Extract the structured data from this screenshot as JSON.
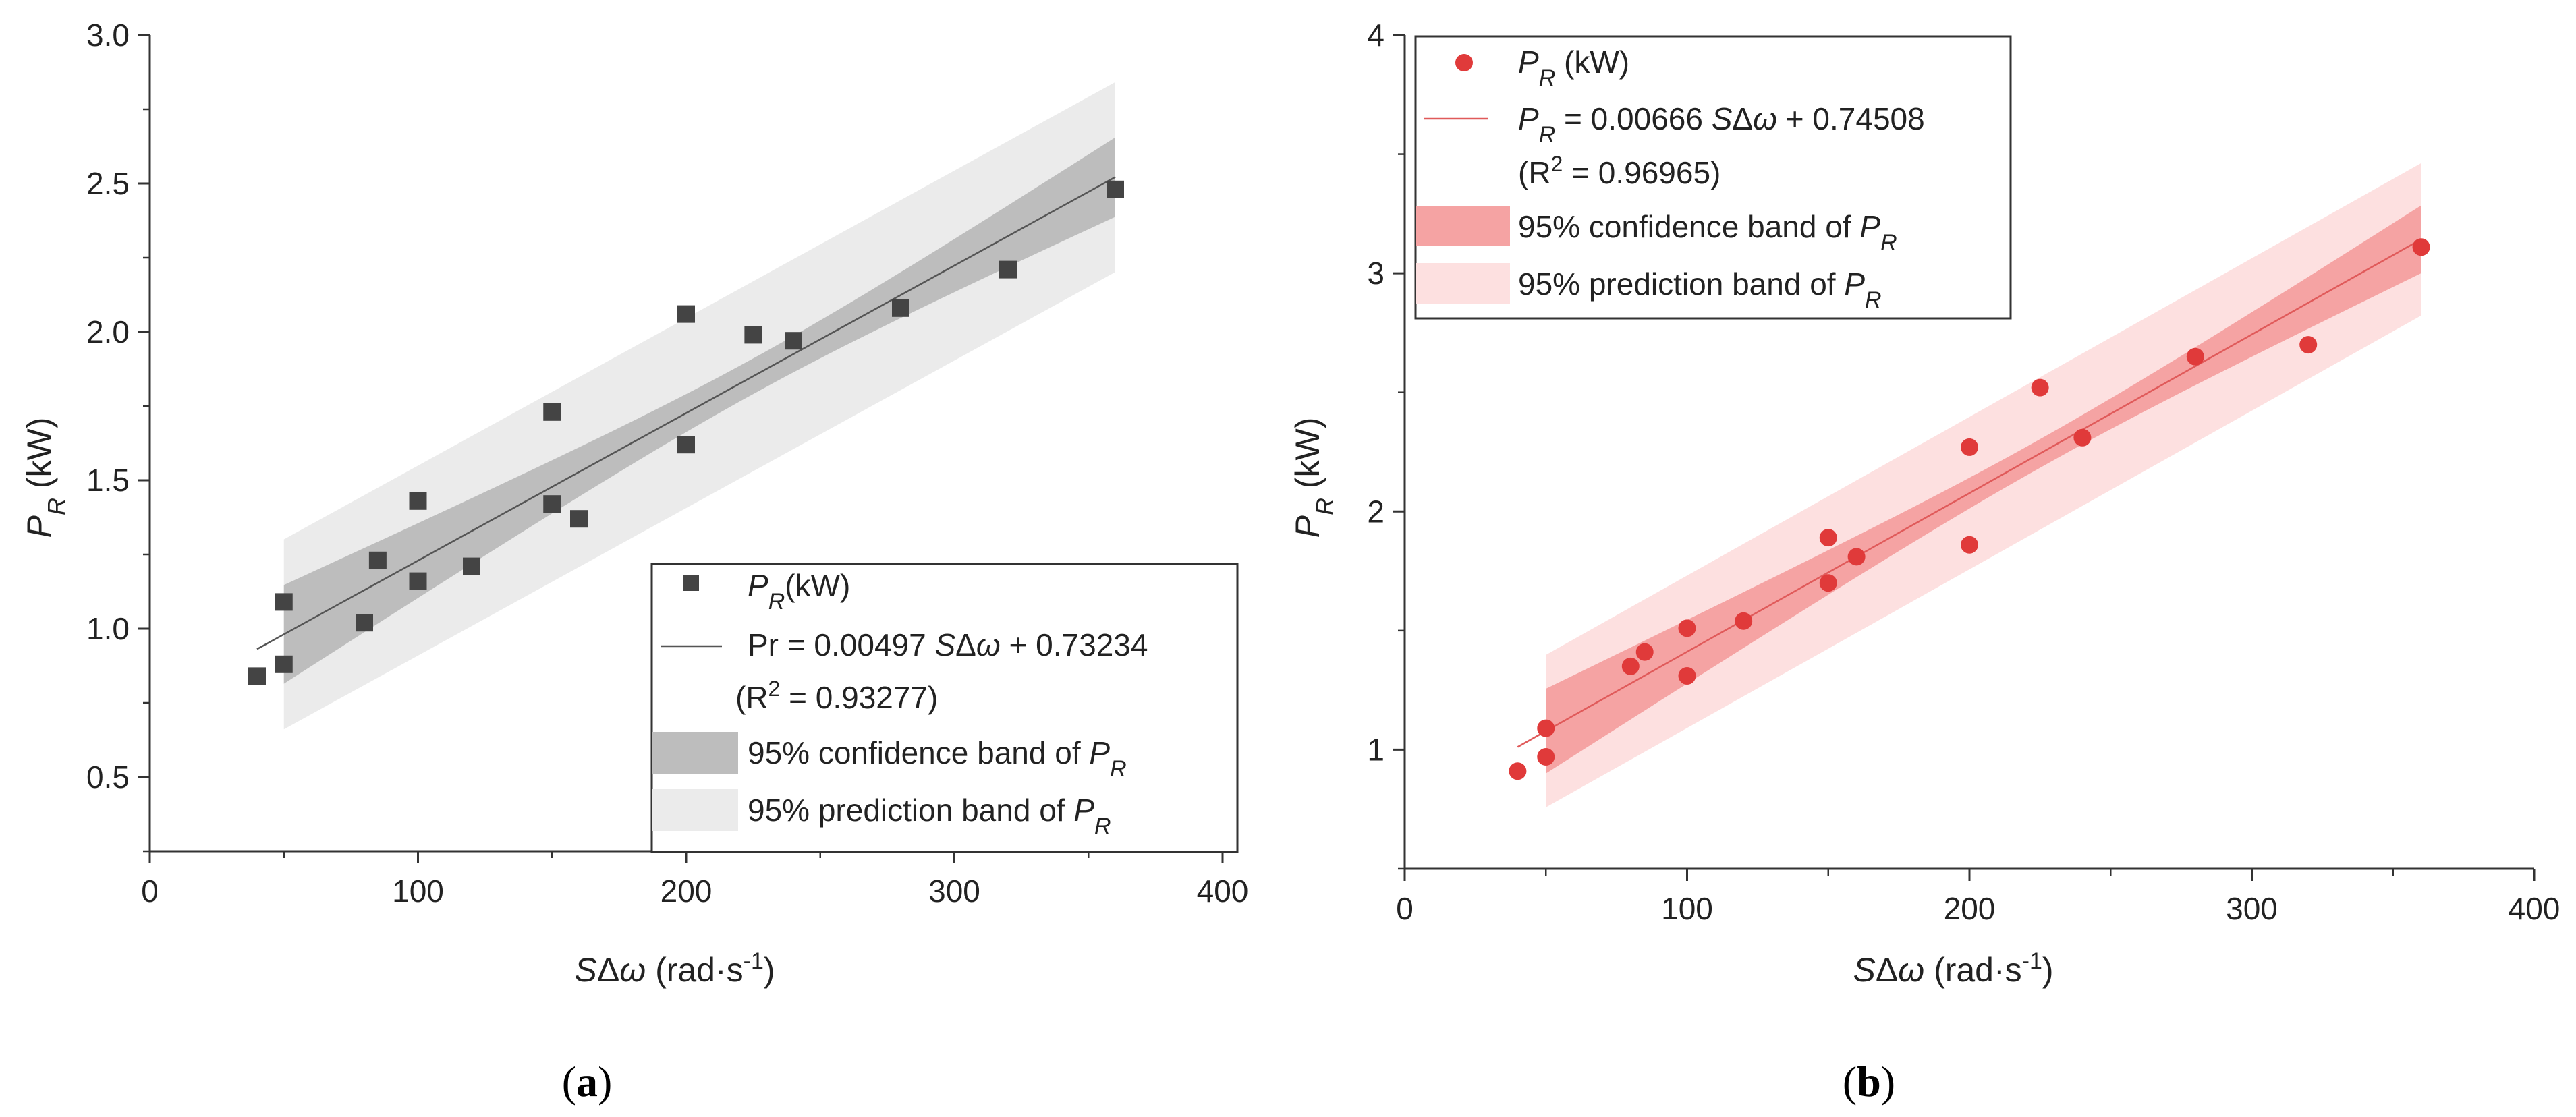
{
  "chart_data": [
    {
      "type": "scatter",
      "panel_label": "(a)",
      "xlabel": "SΔω (rad·s⁻¹)",
      "ylabel": "P_R (kW)",
      "xlim": [
        0,
        400
      ],
      "ylim": [
        0.25,
        3.0
      ],
      "xticks": [
        0,
        100,
        200,
        300,
        400
      ],
      "yticks": [
        0.5,
        1.0,
        1.5,
        2.0,
        2.5,
        3.0
      ],
      "ytick_labels": [
        "0.5",
        "1.0",
        "1.5",
        "2.0",
        "2.5",
        "3.0"
      ],
      "legend_position": "bottom-right",
      "series": [
        {
          "name": "P_R(kW)",
          "marker": "square",
          "color": "#444444",
          "x": [
            40,
            50,
            50,
            80,
            85,
            100,
            100,
            120,
            150,
            150,
            160,
            200,
            200,
            225,
            240,
            280,
            320,
            360
          ],
          "y": [
            0.84,
            0.88,
            1.09,
            1.02,
            1.23,
            1.43,
            1.16,
            1.21,
            1.73,
            1.42,
            1.37,
            2.06,
            1.62,
            1.99,
            1.97,
            2.08,
            2.21,
            2.48
          ]
        }
      ],
      "fit": {
        "slope": 0.00497,
        "intercept": 0.73234,
        "x_range": [
          40,
          360
        ],
        "legend_label": "Pr = 0.00497 SΔω + 0.73234",
        "r2_label": "(R² = 0.93277)",
        "line_color": "#555555"
      },
      "confidence_band": {
        "legend_label": "95% confidence band of P_R",
        "x_range": [
          50,
          360
        ],
        "half_width_center": 0.06,
        "half_width_ends": 0.15,
        "color": "#bdbdbd"
      },
      "prediction_band": {
        "legend_label": "95% prediction band of P_R",
        "x_range": [
          50,
          360
        ],
        "half_width": 0.32,
        "color": "#ebebeb"
      }
    },
    {
      "type": "scatter",
      "panel_label": "(b)",
      "xlabel": "SΔω (rad·s⁻¹)",
      "ylabel": "P_R (kW)",
      "xlim": [
        0,
        400
      ],
      "ylim": [
        0.5,
        4.0
      ],
      "xticks": [
        0,
        100,
        200,
        300,
        400
      ],
      "yticks": [
        1,
        2,
        3,
        4
      ],
      "ytick_labels": [
        "1",
        "2",
        "3",
        "4"
      ],
      "legend_position": "top-left",
      "series": [
        {
          "name": "P_R (kW)",
          "marker": "circle",
          "color": "#e03a3a",
          "x": [
            40,
            50,
            50,
            80,
            85,
            100,
            100,
            120,
            150,
            150,
            160,
            200,
            200,
            225,
            240,
            280,
            320,
            360
          ],
          "y": [
            0.91,
            0.97,
            1.09,
            1.35,
            1.41,
            1.51,
            1.31,
            1.54,
            1.89,
            1.7,
            1.81,
            2.27,
            1.86,
            2.52,
            2.31,
            2.65,
            2.7,
            3.11
          ]
        }
      ],
      "fit": {
        "slope": 0.00666,
        "intercept": 0.74508,
        "x_range": [
          40,
          360
        ],
        "legend_label_eq": "= 0.00666 SΔω + 0.74508",
        "r2_label": "(R² = 0.96965)",
        "line_color": "#e05a5a"
      },
      "confidence_band": {
        "legend_label": "95% confidence band of P_R",
        "x_range": [
          50,
          360
        ],
        "half_width_center": 0.06,
        "half_width_ends": 0.16,
        "color": "#f5a3a3"
      },
      "prediction_band": {
        "legend_label": "95% prediction band of P_R",
        "x_range": [
          50,
          360
        ],
        "half_width": 0.32,
        "color": "#fde0e0"
      }
    }
  ]
}
